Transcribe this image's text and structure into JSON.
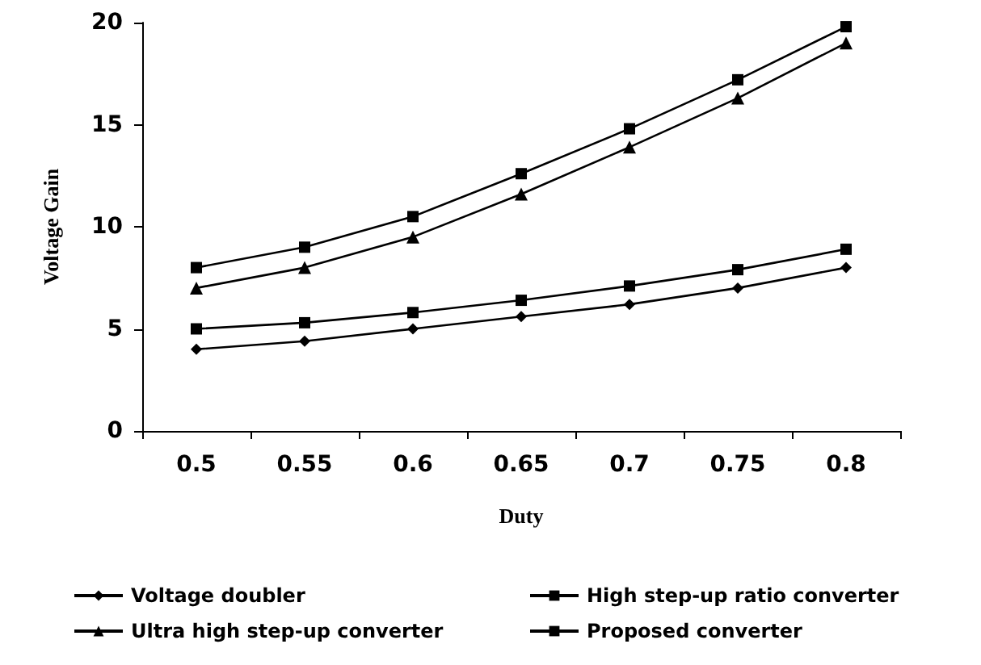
{
  "chart_data": {
    "type": "line",
    "xlabel": "Duty",
    "ylabel": "Voltage Gain",
    "categories": [
      "0.5",
      "0.55",
      "0.6",
      "0.65",
      "0.7",
      "0.75",
      "0.8"
    ],
    "series": [
      {
        "name": "Voltage doubler",
        "color": "#000000",
        "marker": "diamond",
        "values": [
          4,
          4.4,
          5,
          5.6,
          6.2,
          7,
          8
        ]
      },
      {
        "name": "High step-up ratio converter",
        "color": "#000000",
        "marker": "square",
        "values": [
          5,
          5.3,
          5.8,
          6.4,
          7.1,
          7.9,
          8.9
        ]
      },
      {
        "name": "Ultra high step-up converter",
        "color": "#000000",
        "marker": "triangle",
        "values": [
          7,
          8,
          9.5,
          11.6,
          13.9,
          16.3,
          19
        ]
      },
      {
        "name": "Proposed converter",
        "color": "#000000",
        "marker": "square",
        "values": [
          8,
          9,
          10.5,
          12.6,
          14.8,
          17.2,
          19.8
        ]
      }
    ],
    "ylim": [
      0,
      20
    ],
    "yticks": [
      0,
      5,
      10,
      15,
      20
    ],
    "grid": false,
    "legend": "bottom",
    "line_style": "solid"
  }
}
